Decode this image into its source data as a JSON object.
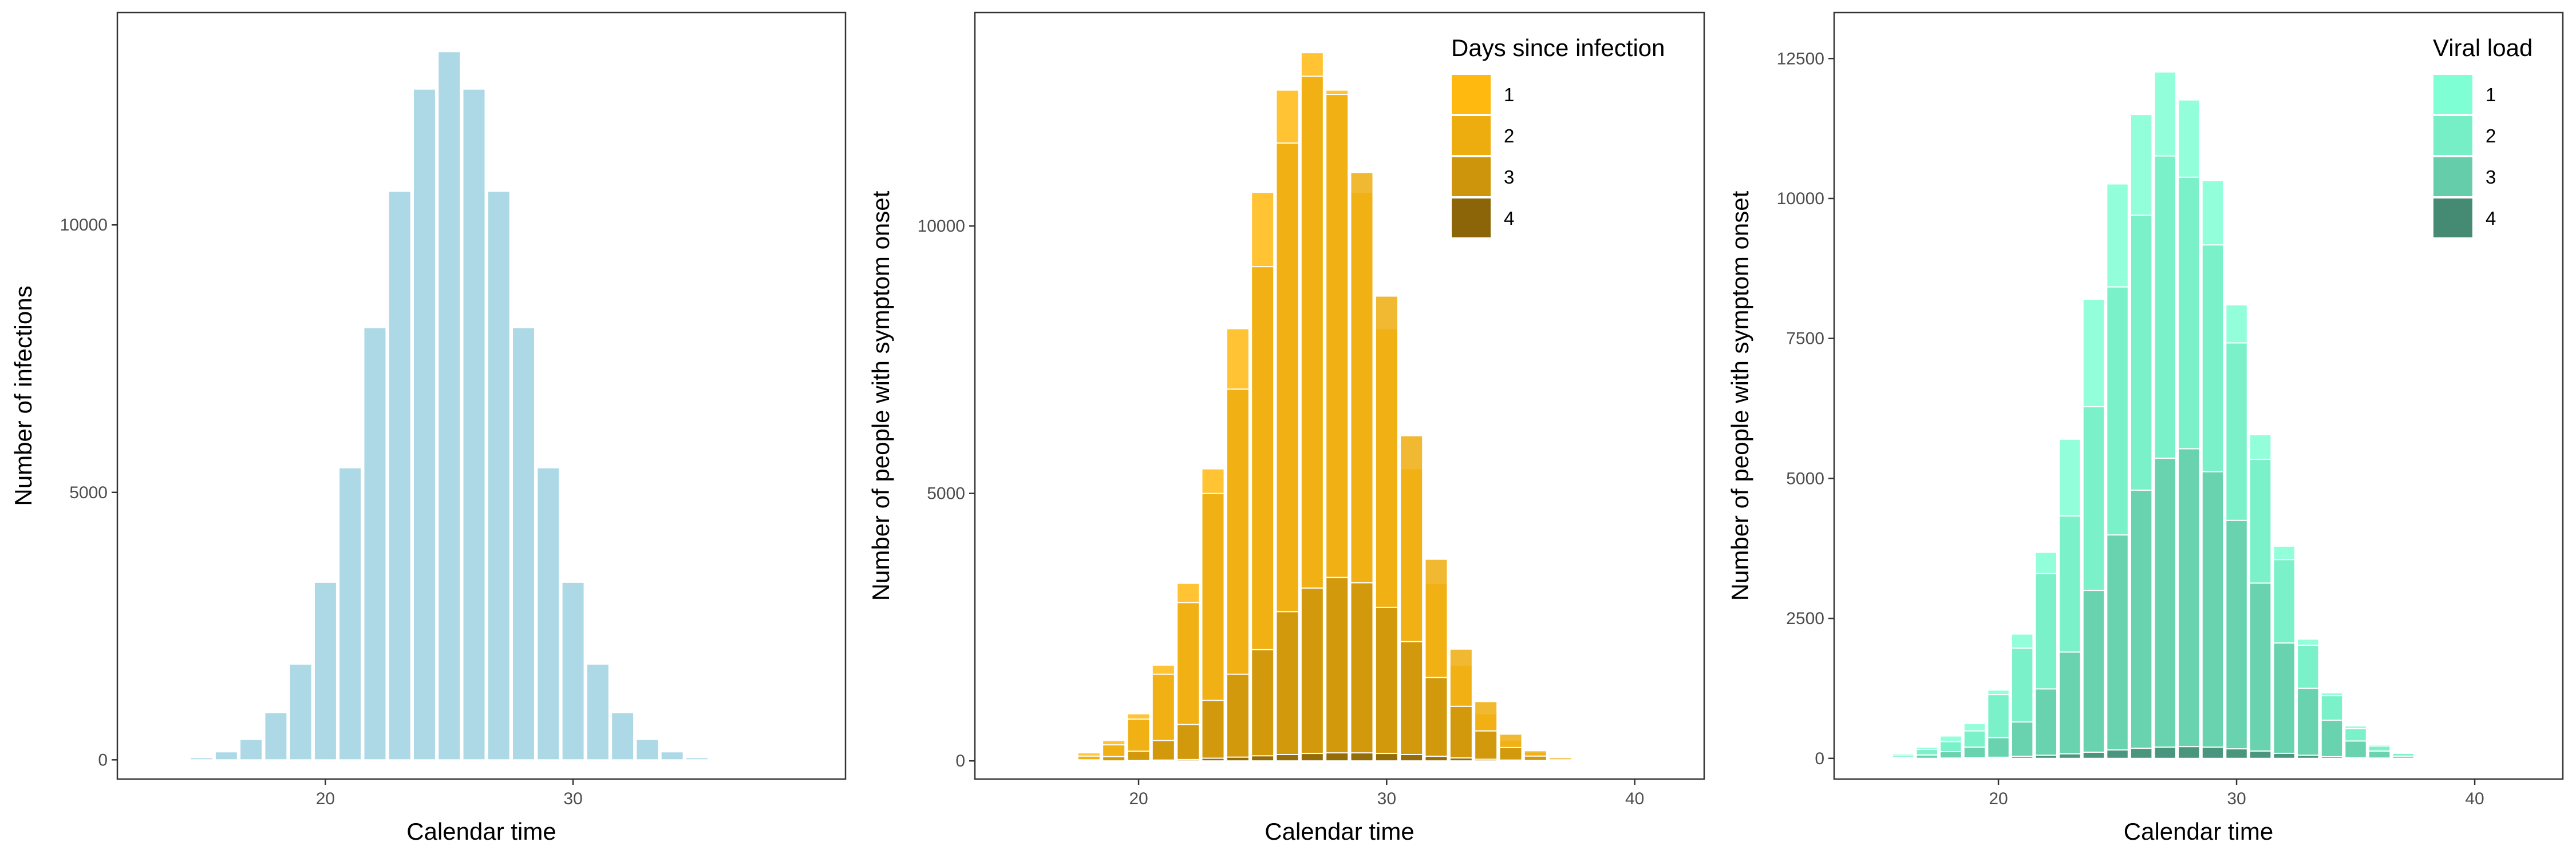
{
  "chart_data": [
    {
      "type": "bar",
      "stacking": "overlay",
      "x": [
        14,
        15,
        16,
        17,
        18,
        19,
        20,
        21,
        22,
        23,
        24,
        25,
        26,
        27,
        28,
        29,
        30,
        31,
        32,
        33,
        34,
        35,
        36
      ],
      "series": [
        {
          "color": "#ADD8E6",
          "values": [
            10,
            40,
            150,
            380,
            880,
            1790,
            3320,
            5460,
            8080,
            10630,
            12540,
            13240,
            12540,
            10630,
            8080,
            5460,
            3320,
            1790,
            880,
            380,
            150,
            40,
            10
          ]
        }
      ],
      "xlabel": "Calendar time",
      "ylabel": "Number of infections",
      "xlim": [
        11.6,
        41.0
      ],
      "ylim": [
        -360,
        13970
      ],
      "xticks": [
        20,
        30
      ],
      "yticks": [
        0,
        5000,
        10000
      ],
      "ytick_labels": [
        "0",
        "5000",
        "10000"
      ],
      "grid": false,
      "legend": null
    },
    {
      "type": "bar",
      "stacking": "overlay",
      "x": [
        16,
        17,
        18,
        19,
        20,
        21,
        22,
        23,
        24,
        25,
        26,
        27,
        28,
        29,
        30,
        31,
        32,
        33,
        34,
        35,
        36,
        37,
        38,
        39
      ],
      "legend_title": "Days since infection",
      "legend_position": "top-right",
      "series": [
        {
          "name": "1",
          "color": "#FFB90F",
          "values": [
            10,
            40,
            150,
            380,
            880,
            1790,
            3320,
            5460,
            8080,
            10630,
            12540,
            13240,
            12540,
            10630,
            8080,
            5460,
            3320,
            1790,
            880,
            380,
            150,
            40,
            10,
            0
          ]
        },
        {
          "name": "2",
          "color": "#EEAD0E",
          "values": [
            0,
            20,
            90,
            300,
            780,
            1620,
            2960,
            5000,
            6950,
            9240,
            11550,
            12800,
            12460,
            11000,
            8690,
            6080,
            3770,
            2090,
            1110,
            500,
            190,
            60,
            15,
            5
          ]
        },
        {
          "name": "3",
          "color": "#CD950C",
          "values": [
            0,
            0,
            20,
            80,
            180,
            380,
            680,
            1130,
            1620,
            2080,
            2790,
            3230,
            3430,
            3330,
            2870,
            2230,
            1560,
            1020,
            560,
            250,
            90,
            20,
            5,
            0
          ]
        },
        {
          "name": "4",
          "color": "#8B6508",
          "values": [
            0,
            0,
            0,
            0,
            5,
            15,
            25,
            50,
            70,
            95,
            120,
            140,
            150,
            150,
            140,
            120,
            85,
            55,
            30,
            15,
            5,
            0,
            0,
            0
          ]
        }
      ],
      "xlabel": "Calendar time",
      "ylabel": "Number of people with symptom onset",
      "xlim": [
        13.4,
        42.8
      ],
      "ylim": [
        -340,
        13990
      ],
      "xticks": [
        20,
        30,
        40
      ],
      "yticks": [
        0,
        5000,
        10000
      ],
      "ytick_labels": [
        "0",
        "5000",
        "10000"
      ],
      "grid": false
    },
    {
      "type": "bar",
      "stacking": "overlay",
      "x": [
        15,
        16,
        17,
        18,
        19,
        20,
        21,
        22,
        23,
        24,
        25,
        26,
        27,
        28,
        29,
        30,
        31,
        32,
        33,
        34,
        35,
        36,
        37,
        38,
        39
      ],
      "legend_title": "Viral load",
      "legend_position": "top-right",
      "series": [
        {
          "name": "1",
          "color": "#7FFFD4",
          "values": [
            20,
            90,
            200,
            400,
            620,
            1220,
            2220,
            3680,
            5700,
            8200,
            10260,
            11500,
            12260,
            11760,
            10320,
            8100,
            5780,
            3790,
            2130,
            1170,
            580,
            250,
            100,
            30,
            10
          ]
        },
        {
          "name": "2",
          "color": "#76EEC6",
          "values": [
            10,
            60,
            160,
            300,
            490,
            1140,
            1970,
            3300,
            4330,
            6280,
            8420,
            9700,
            10760,
            10380,
            9170,
            7420,
            5340,
            3550,
            2020,
            1120,
            530,
            220,
            90,
            25,
            5
          ]
        },
        {
          "name": "3",
          "color": "#66CDAA",
          "values": [
            0,
            20,
            60,
            120,
            200,
            370,
            650,
            1240,
            1900,
            3000,
            3990,
            4790,
            5360,
            5530,
            5120,
            4250,
            3130,
            2060,
            1250,
            680,
            310,
            130,
            40,
            10,
            0
          ]
        },
        {
          "name": "4",
          "color": "#458B74",
          "values": [
            0,
            0,
            0,
            5,
            10,
            20,
            35,
            55,
            80,
            110,
            150,
            180,
            200,
            210,
            200,
            170,
            130,
            90,
            55,
            30,
            10,
            5,
            0,
            0,
            0
          ]
        }
      ],
      "xlabel": "Calendar time",
      "ylabel": "Number of people with symptom onset",
      "xlim": [
        13.1,
        43.7
      ],
      "ylim": [
        -370,
        13320
      ],
      "xticks": [
        20,
        30,
        40
      ],
      "yticks": [
        0,
        2500,
        5000,
        7500,
        10000,
        12500
      ],
      "ytick_labels": [
        "0",
        "2500",
        "5000",
        "7500",
        "10000",
        "12500"
      ],
      "grid": false
    }
  ]
}
